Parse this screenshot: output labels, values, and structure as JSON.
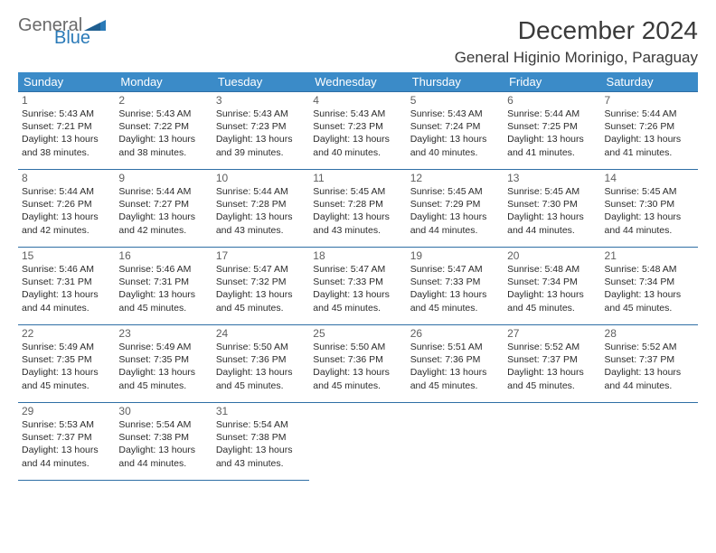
{
  "logo": {
    "line1": "General",
    "line2": "Blue"
  },
  "title": "December 2024",
  "location": "General Higinio Morinigo, Paraguay",
  "colors": {
    "header_bg": "#3b8bc8",
    "header_text": "#ffffff",
    "row_border": "#2f6fa5",
    "body_text": "#2b2b2b",
    "daynum_text": "#5f5f5f",
    "logo_gray": "#6a6a6a",
    "logo_blue": "#2a7ab8"
  },
  "type": "calendar-table",
  "days_of_week": [
    "Sunday",
    "Monday",
    "Tuesday",
    "Wednesday",
    "Thursday",
    "Friday",
    "Saturday"
  ],
  "weeks": [
    [
      {
        "n": "1",
        "sr": "5:43 AM",
        "ss": "7:21 PM",
        "dl": "13 hours and 38 minutes."
      },
      {
        "n": "2",
        "sr": "5:43 AM",
        "ss": "7:22 PM",
        "dl": "13 hours and 38 minutes."
      },
      {
        "n": "3",
        "sr": "5:43 AM",
        "ss": "7:23 PM",
        "dl": "13 hours and 39 minutes."
      },
      {
        "n": "4",
        "sr": "5:43 AM",
        "ss": "7:23 PM",
        "dl": "13 hours and 40 minutes."
      },
      {
        "n": "5",
        "sr": "5:43 AM",
        "ss": "7:24 PM",
        "dl": "13 hours and 40 minutes."
      },
      {
        "n": "6",
        "sr": "5:44 AM",
        "ss": "7:25 PM",
        "dl": "13 hours and 41 minutes."
      },
      {
        "n": "7",
        "sr": "5:44 AM",
        "ss": "7:26 PM",
        "dl": "13 hours and 41 minutes."
      }
    ],
    [
      {
        "n": "8",
        "sr": "5:44 AM",
        "ss": "7:26 PM",
        "dl": "13 hours and 42 minutes."
      },
      {
        "n": "9",
        "sr": "5:44 AM",
        "ss": "7:27 PM",
        "dl": "13 hours and 42 minutes."
      },
      {
        "n": "10",
        "sr": "5:44 AM",
        "ss": "7:28 PM",
        "dl": "13 hours and 43 minutes."
      },
      {
        "n": "11",
        "sr": "5:45 AM",
        "ss": "7:28 PM",
        "dl": "13 hours and 43 minutes."
      },
      {
        "n": "12",
        "sr": "5:45 AM",
        "ss": "7:29 PM",
        "dl": "13 hours and 44 minutes."
      },
      {
        "n": "13",
        "sr": "5:45 AM",
        "ss": "7:30 PM",
        "dl": "13 hours and 44 minutes."
      },
      {
        "n": "14",
        "sr": "5:45 AM",
        "ss": "7:30 PM",
        "dl": "13 hours and 44 minutes."
      }
    ],
    [
      {
        "n": "15",
        "sr": "5:46 AM",
        "ss": "7:31 PM",
        "dl": "13 hours and 44 minutes."
      },
      {
        "n": "16",
        "sr": "5:46 AM",
        "ss": "7:31 PM",
        "dl": "13 hours and 45 minutes."
      },
      {
        "n": "17",
        "sr": "5:47 AM",
        "ss": "7:32 PM",
        "dl": "13 hours and 45 minutes."
      },
      {
        "n": "18",
        "sr": "5:47 AM",
        "ss": "7:33 PM",
        "dl": "13 hours and 45 minutes."
      },
      {
        "n": "19",
        "sr": "5:47 AM",
        "ss": "7:33 PM",
        "dl": "13 hours and 45 minutes."
      },
      {
        "n": "20",
        "sr": "5:48 AM",
        "ss": "7:34 PM",
        "dl": "13 hours and 45 minutes."
      },
      {
        "n": "21",
        "sr": "5:48 AM",
        "ss": "7:34 PM",
        "dl": "13 hours and 45 minutes."
      }
    ],
    [
      {
        "n": "22",
        "sr": "5:49 AM",
        "ss": "7:35 PM",
        "dl": "13 hours and 45 minutes."
      },
      {
        "n": "23",
        "sr": "5:49 AM",
        "ss": "7:35 PM",
        "dl": "13 hours and 45 minutes."
      },
      {
        "n": "24",
        "sr": "5:50 AM",
        "ss": "7:36 PM",
        "dl": "13 hours and 45 minutes."
      },
      {
        "n": "25",
        "sr": "5:50 AM",
        "ss": "7:36 PM",
        "dl": "13 hours and 45 minutes."
      },
      {
        "n": "26",
        "sr": "5:51 AM",
        "ss": "7:36 PM",
        "dl": "13 hours and 45 minutes."
      },
      {
        "n": "27",
        "sr": "5:52 AM",
        "ss": "7:37 PM",
        "dl": "13 hours and 45 minutes."
      },
      {
        "n": "28",
        "sr": "5:52 AM",
        "ss": "7:37 PM",
        "dl": "13 hours and 44 minutes."
      }
    ],
    [
      {
        "n": "29",
        "sr": "5:53 AM",
        "ss": "7:37 PM",
        "dl": "13 hours and 44 minutes."
      },
      {
        "n": "30",
        "sr": "5:54 AM",
        "ss": "7:38 PM",
        "dl": "13 hours and 44 minutes."
      },
      {
        "n": "31",
        "sr": "5:54 AM",
        "ss": "7:38 PM",
        "dl": "13 hours and 43 minutes."
      },
      null,
      null,
      null,
      null
    ]
  ],
  "labels": {
    "sunrise": "Sunrise: ",
    "sunset": "Sunset: ",
    "daylight": "Daylight: "
  }
}
